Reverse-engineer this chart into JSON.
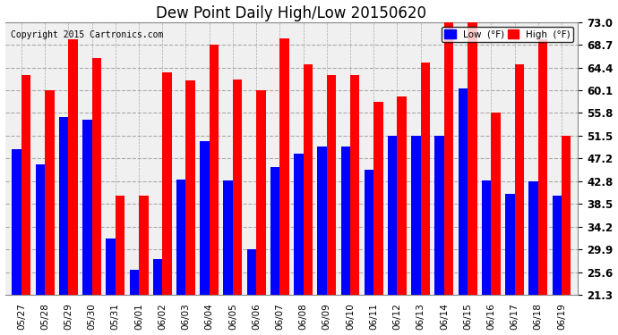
{
  "title": "Dew Point Daily High/Low 20150620",
  "copyright": "Copyright 2015 Cartronics.com",
  "dates": [
    "05/27",
    "05/28",
    "05/29",
    "05/30",
    "05/31",
    "06/01",
    "06/02",
    "06/03",
    "06/04",
    "06/05",
    "06/06",
    "06/07",
    "06/08",
    "06/09",
    "06/10",
    "06/11",
    "06/12",
    "06/13",
    "06/14",
    "06/15",
    "06/16",
    "06/17",
    "06/18",
    "06/19"
  ],
  "high": [
    63.0,
    60.1,
    69.8,
    66.2,
    40.1,
    40.1,
    63.5,
    62.0,
    68.7,
    62.2,
    60.1,
    70.0,
    65.0,
    63.0,
    63.0,
    58.0,
    59.0,
    65.3,
    73.4,
    73.4,
    55.8,
    65.0,
    69.8,
    51.5
  ],
  "low": [
    49.0,
    46.1,
    55.0,
    54.5,
    32.0,
    26.0,
    28.0,
    43.1,
    50.5,
    43.0,
    30.0,
    45.5,
    48.0,
    49.5,
    49.5,
    45.0,
    51.5,
    51.5,
    51.5,
    60.5,
    43.0,
    40.5,
    42.8,
    40.1
  ],
  "ymin": 21.3,
  "ymax": 73.0,
  "yticks": [
    21.3,
    25.6,
    29.9,
    34.2,
    38.5,
    42.8,
    47.2,
    51.5,
    55.8,
    60.1,
    64.4,
    68.7,
    73.0
  ],
  "low_color": "#0000ff",
  "high_color": "#ff0000",
  "bg_color": "#ffffff",
  "plot_bg_color": "#f0f0f0",
  "grid_color": "#aaaaaa",
  "title_fontsize": 12,
  "legend_low_label": "Low  (°F)",
  "legend_high_label": "High  (°F)"
}
